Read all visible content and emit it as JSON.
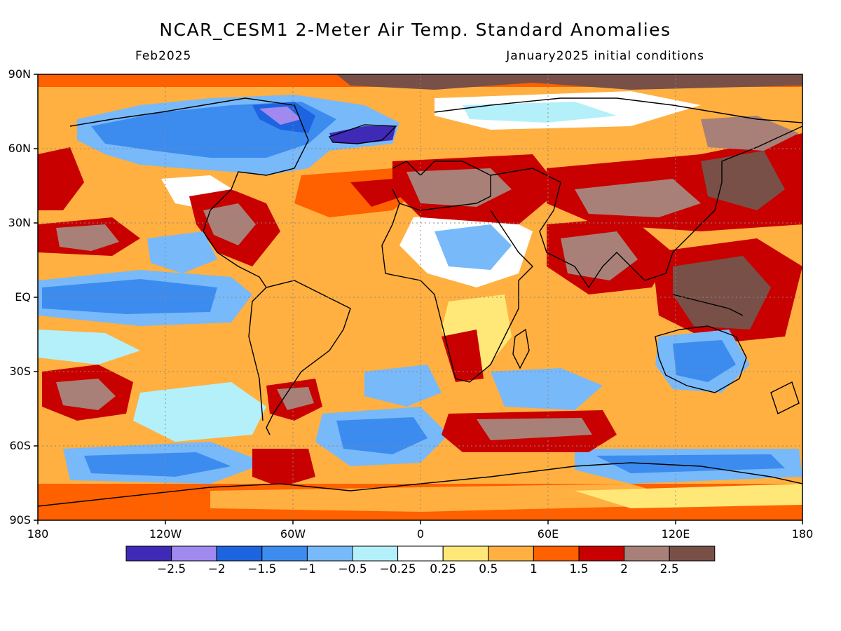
{
  "title": "NCAR_CESM1 2-Meter Air Temp. Standard Anomalies",
  "subtitle_left": "Feb2025",
  "subtitle_right": "January2025 initial conditions",
  "y_ticks": [
    "90N",
    "60N",
    "30N",
    "EQ",
    "30S",
    "60S",
    "90S"
  ],
  "x_ticks": [
    "180",
    "120W",
    "60W",
    "0",
    "60E",
    "120E",
    "180"
  ],
  "colorbar": {
    "labels": [
      "-2.5",
      "-2",
      "-1.5",
      "-1",
      "-0.5",
      "-0.25",
      "0.25",
      "0.5",
      "1",
      "1.5",
      "2",
      "2.5"
    ],
    "colors": [
      "#3f2ab8",
      "#a08af0",
      "#1e64e0",
      "#3c8cf0",
      "#78b9fa",
      "#b4f0fa",
      "#ffffff",
      "#ffe878",
      "#ffb040",
      "#ff6000",
      "#c80000",
      "#a88078",
      "#785048"
    ]
  }
}
